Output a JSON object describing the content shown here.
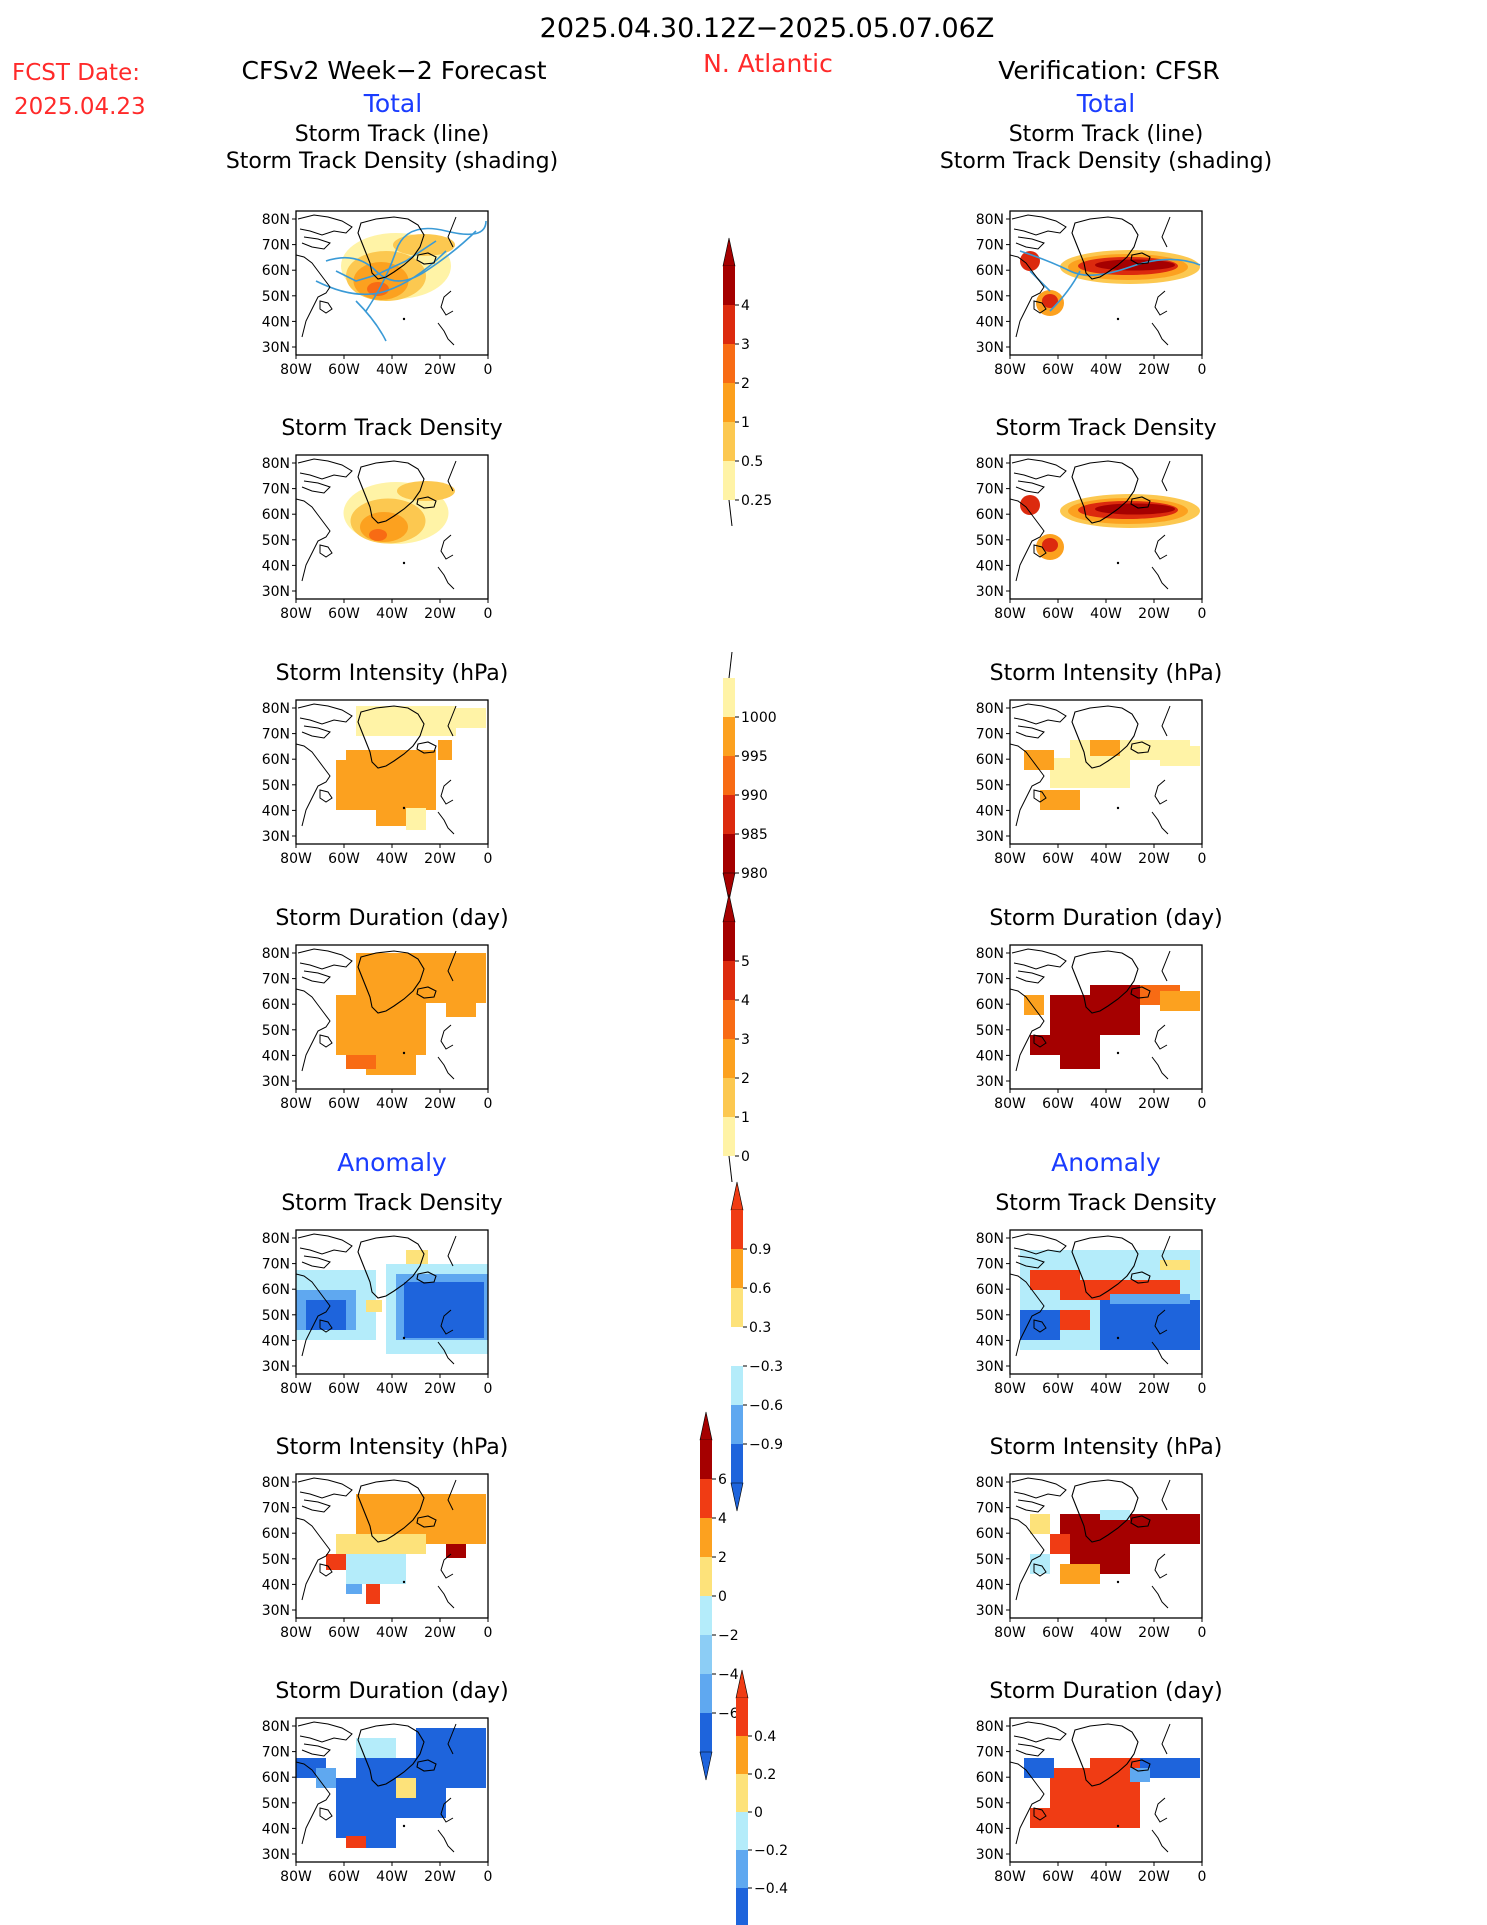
{
  "header": {
    "date_range": "2025.04.30.12Z−2025.05.07.06Z",
    "fcst_label": "FCST Date:",
    "fcst_date": "2025.04.23",
    "left_title": "CFSv2 Week−2 Forecast",
    "region": "N. Atlantic",
    "right_title": "Verification: CFSR"
  },
  "sections": {
    "total": "Total",
    "anomaly": "Anomaly"
  },
  "panels": {
    "track_line": "Storm Track (line)",
    "track_shading": "Storm Track Density (shading)",
    "density": "Storm Track Density",
    "intensity": "Storm Intensity (hPa)",
    "duration": "Storm Duration (day)"
  },
  "axis_labels": {
    "lat": [
      "80N",
      "70N",
      "60N",
      "50N",
      "40N",
      "30N"
    ],
    "lon": [
      "80W",
      "60W",
      "40W",
      "20W",
      "0"
    ]
  },
  "colorbars": {
    "density_total": {
      "labels": [
        "4",
        "3",
        "2",
        "1",
        "0.5",
        "0.25"
      ],
      "colors": [
        "#a50000",
        "#dc2a0e",
        "#f86b14",
        "#fc9f1c",
        "#fcc850",
        "#fff3a6"
      ]
    },
    "intensity_total": {
      "labels": [
        "1000",
        "995",
        "990",
        "985",
        "980"
      ],
      "colors": [
        "#fff3a6",
        "#fca11f",
        "#f86b14",
        "#dc2a0e",
        "#a50000"
      ]
    },
    "duration_total": {
      "labels": [
        "5",
        "4",
        "3",
        "2",
        "1",
        "0"
      ],
      "colors": [
        "#a50000",
        "#dc2a0e",
        "#f86b14",
        "#fca11f",
        "#fcc850",
        "#fff3a6"
      ]
    },
    "density_anom": {
      "labels": [
        "0.9",
        "0.6",
        "0.3",
        "−0.3",
        "−0.6",
        "−0.9"
      ],
      "colors": [
        "#f03c14",
        "#fca11f",
        "#fde27a",
        "#ffffff",
        "#b4ecfa",
        "#5fa8f0",
        "#1e64dc"
      ]
    },
    "intensity_anom": {
      "labels": [
        "6",
        "4",
        "2",
        "0",
        "−2",
        "−4",
        "−6"
      ],
      "colors": [
        "#a50000",
        "#f03c14",
        "#fca11f",
        "#fde27a",
        "#b4ecfa",
        "#8ccdf5",
        "#5fa8f0",
        "#1e64dc"
      ]
    },
    "duration_anom": {
      "labels": [
        "0.4",
        "0.2",
        "0",
        "−0.2",
        "−0.4"
      ],
      "colors": [
        "#f03c14",
        "#fca11f",
        "#fde27a",
        "#b4ecfa",
        "#5fa8f0",
        "#1e64dc"
      ]
    }
  }
}
